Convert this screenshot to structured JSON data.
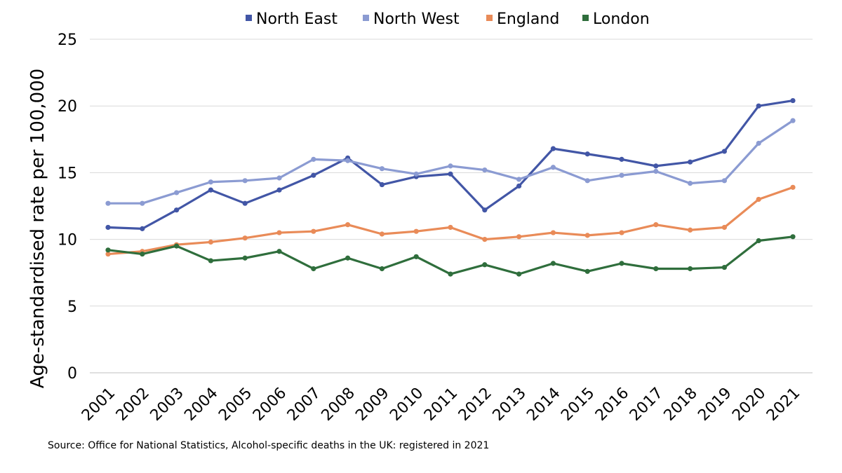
{
  "chart_data": {
    "type": "line",
    "title": "",
    "xlabel": "",
    "ylabel": "Age-standardised rate per 100,000",
    "ylim": [
      0,
      25
    ],
    "yticks": [
      0,
      5,
      10,
      15,
      20,
      25
    ],
    "grid": true,
    "legend_position": "top",
    "categories": [
      "2001",
      "2002",
      "2003",
      "2004",
      "2005",
      "2006",
      "2007",
      "2008",
      "2009",
      "2010",
      "2011",
      "2012",
      "2013",
      "2014",
      "2015",
      "2016",
      "2017",
      "2018",
      "2019",
      "2020",
      "2021"
    ],
    "series": [
      {
        "name": "North East",
        "color": "#4256a6",
        "values": [
          10.9,
          10.8,
          12.2,
          13.7,
          12.7,
          13.7,
          14.8,
          16.1,
          14.1,
          14.7,
          14.9,
          12.2,
          14.0,
          16.8,
          16.4,
          16.0,
          15.5,
          15.8,
          16.6,
          20.0,
          20.4
        ]
      },
      {
        "name": "North West",
        "color": "#8b9bd2",
        "values": [
          12.7,
          12.7,
          13.5,
          14.3,
          14.4,
          14.6,
          16.0,
          15.9,
          15.3,
          14.9,
          15.5,
          15.2,
          14.5,
          15.4,
          14.4,
          14.8,
          15.1,
          14.2,
          14.4,
          17.2,
          18.9
        ]
      },
      {
        "name": "England",
        "color": "#e98b58",
        "values": [
          8.9,
          9.1,
          9.6,
          9.8,
          10.1,
          10.5,
          10.6,
          11.1,
          10.4,
          10.6,
          10.9,
          10.0,
          10.2,
          10.5,
          10.3,
          10.5,
          11.1,
          10.7,
          10.9,
          13.0,
          13.9
        ]
      },
      {
        "name": "London",
        "color": "#2f6e3c",
        "values": [
          9.2,
          8.9,
          9.5,
          8.4,
          8.6,
          9.1,
          7.8,
          8.6,
          7.8,
          8.7,
          7.4,
          8.1,
          7.4,
          8.2,
          7.6,
          8.2,
          7.8,
          7.8,
          7.9,
          9.9,
          10.2
        ]
      }
    ],
    "source": "Source: Office for National Statistics, Alcohol-specific deaths in the UK: registered in 2021"
  }
}
